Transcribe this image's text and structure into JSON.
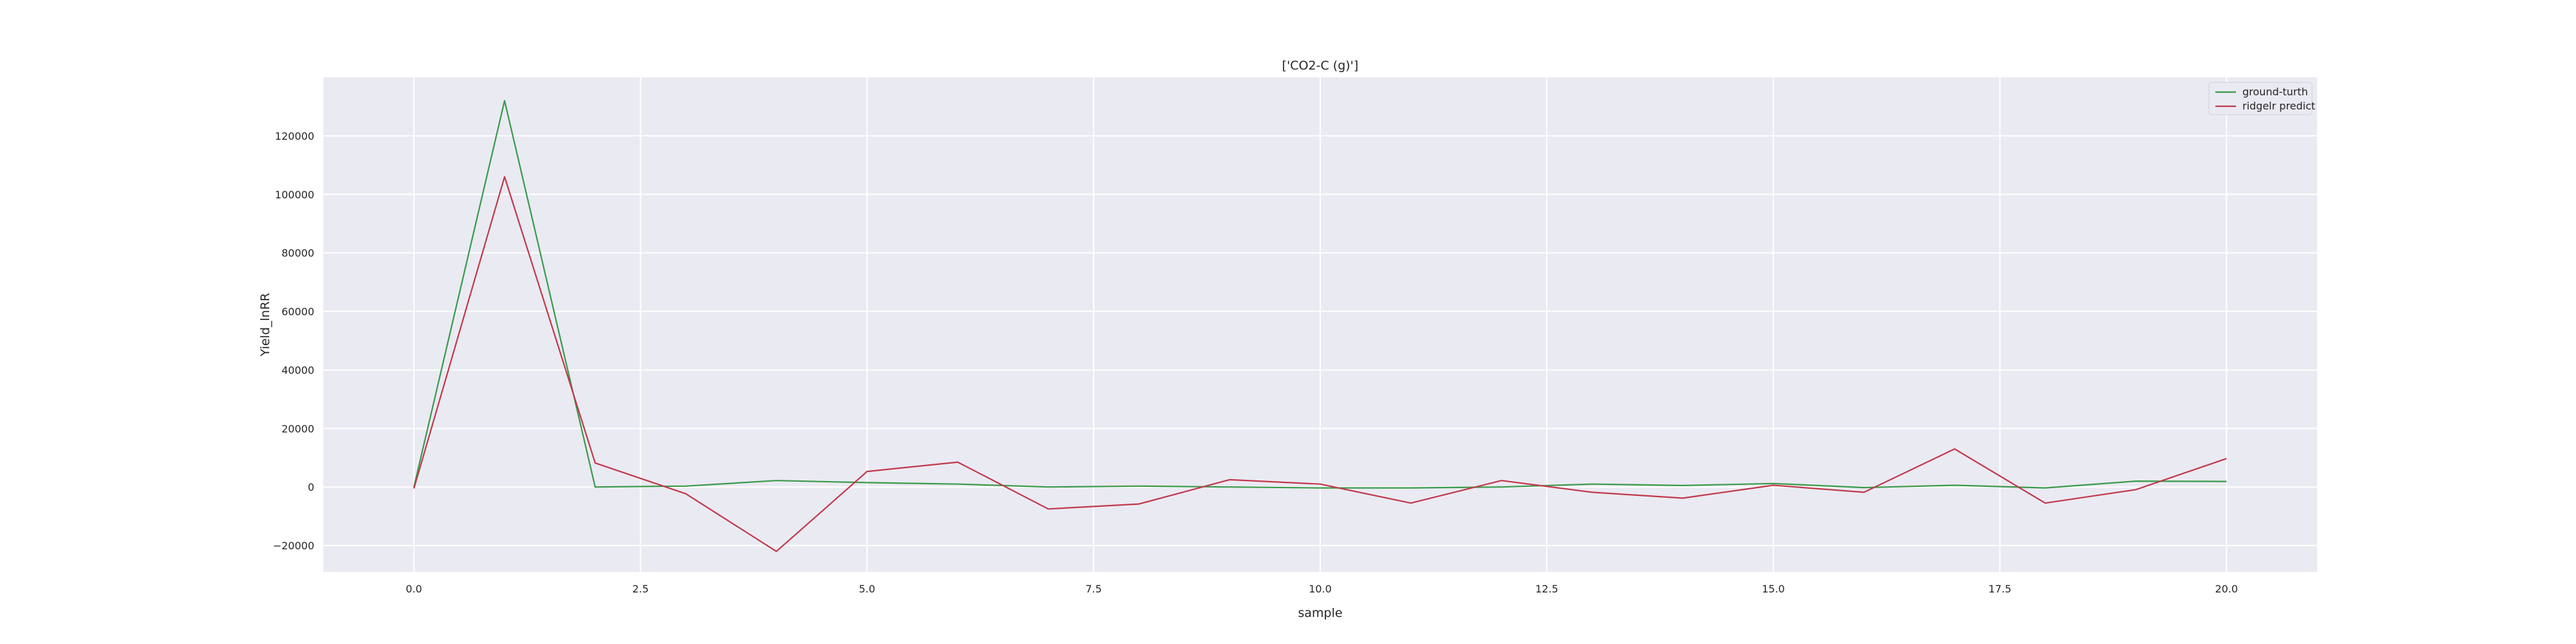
{
  "chart_data": {
    "type": "line",
    "title": "['CO2-C (g)']",
    "xlabel": "sample",
    "ylabel": "Yield_lnRR",
    "xlim": [
      -1,
      21
    ],
    "ylim": [
      -29000,
      140000
    ],
    "grid": true,
    "legend_position": "top-right",
    "x_ticks": [
      0,
      2.5,
      5,
      7.5,
      10,
      12.5,
      15,
      17.5,
      20
    ],
    "x_tick_labels": [
      "0.0",
      "2.5",
      "5.0",
      "7.5",
      "10.0",
      "12.5",
      "15.0",
      "17.5",
      "20.0"
    ],
    "y_ticks": [
      -20000,
      0,
      20000,
      40000,
      60000,
      80000,
      100000,
      120000
    ],
    "y_tick_labels": [
      "−20000",
      "0",
      "20000",
      "40000",
      "60000",
      "80000",
      "100000",
      "120000"
    ],
    "x": [
      0,
      1,
      2,
      3,
      4,
      5,
      6,
      7,
      8,
      9,
      10,
      11,
      12,
      13,
      14,
      15,
      16,
      17,
      18,
      19,
      20
    ],
    "series": [
      {
        "name": "ground-turth",
        "color": "#3a9a4a",
        "values": [
          0,
          132000,
          0,
          300,
          2200,
          1500,
          1000,
          0,
          300,
          0,
          -300,
          -300,
          0,
          1000,
          500,
          1200,
          -200,
          600,
          -300,
          2000,
          1900
        ]
      },
      {
        "name": "ridgelr predict",
        "color": "#c0394b",
        "values": [
          -500,
          106000,
          8200,
          -2300,
          -22000,
          5300,
          8500,
          -7500,
          -5800,
          2500,
          1000,
          -5500,
          2200,
          -1800,
          -3800,
          600,
          -1800,
          13000,
          -5500,
          -900,
          9700
        ]
      }
    ]
  }
}
